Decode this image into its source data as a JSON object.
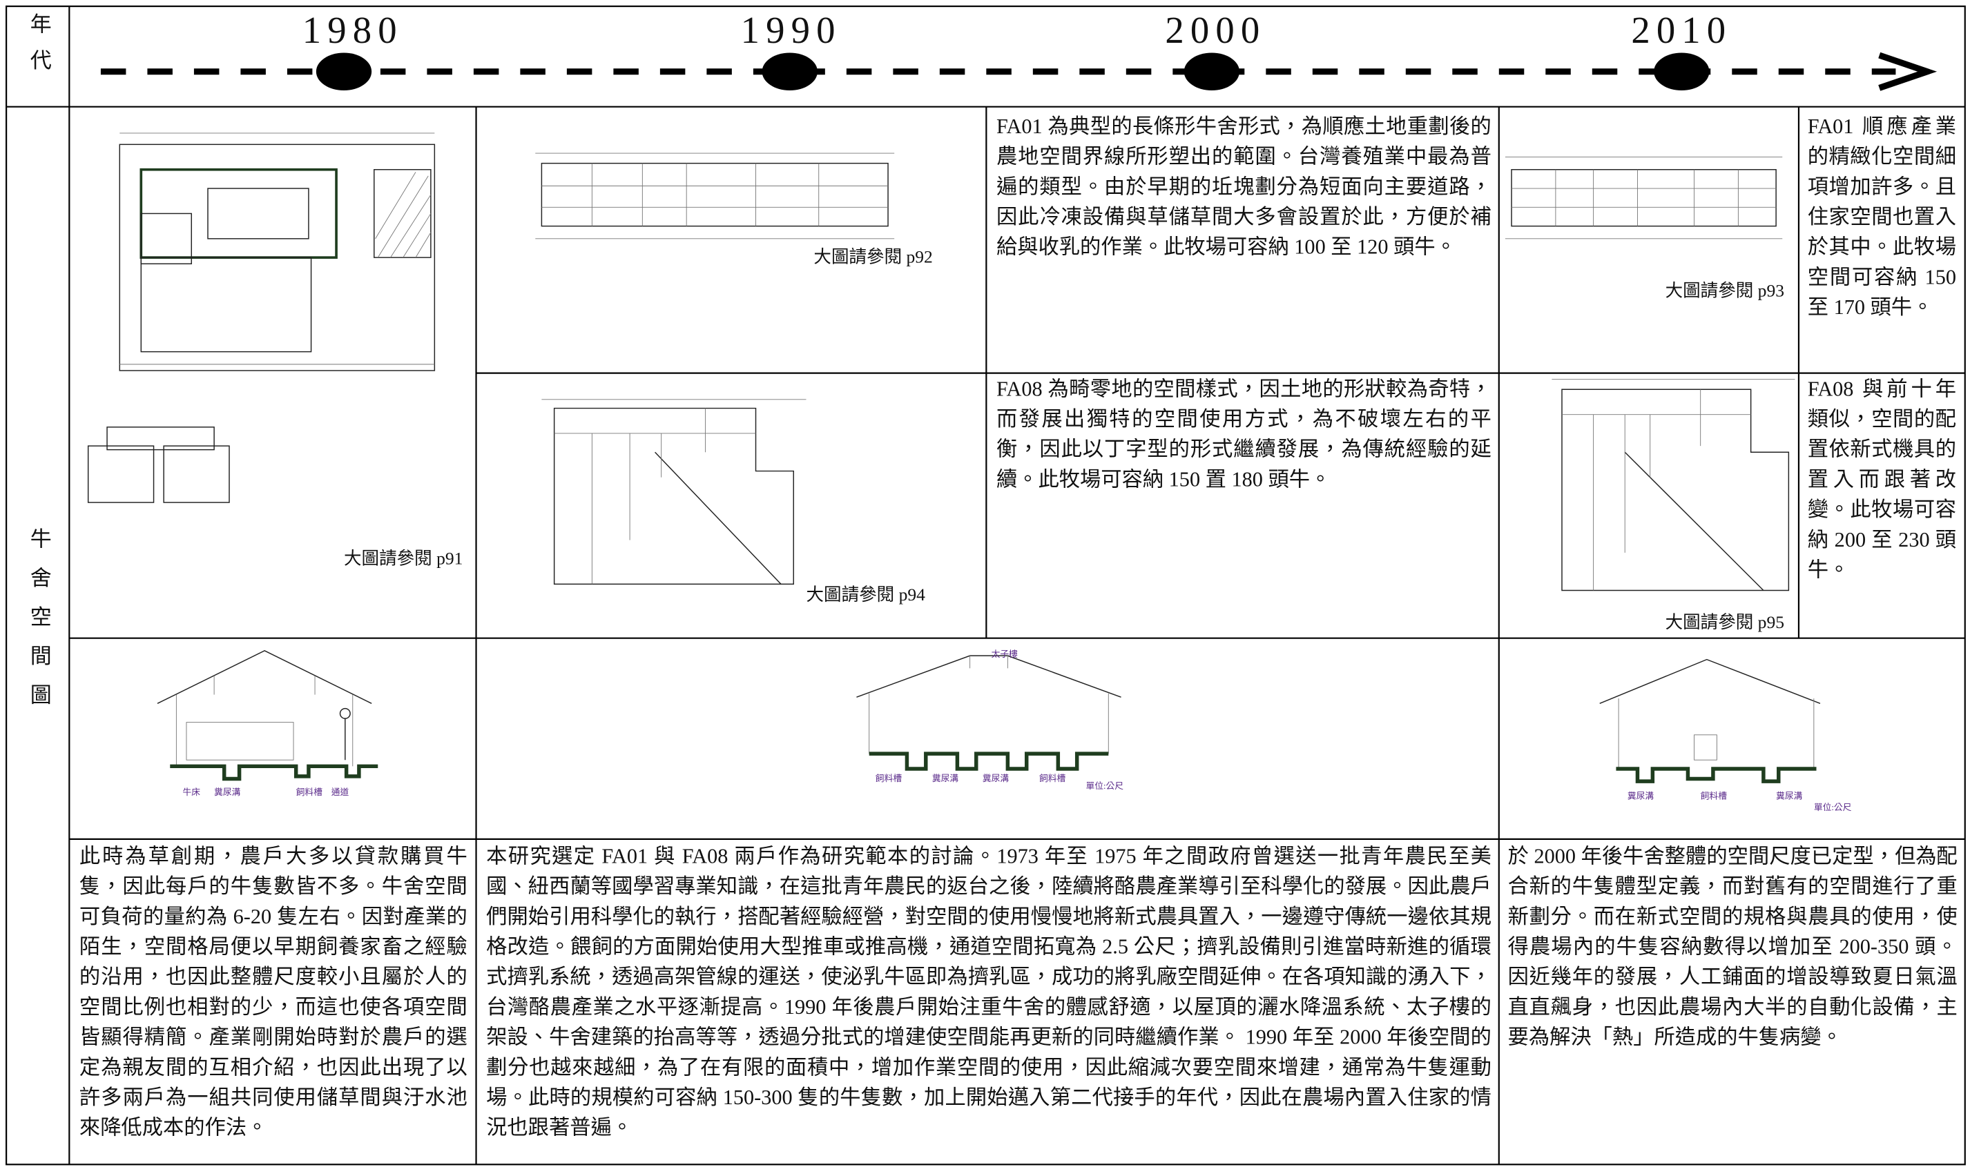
{
  "header": {
    "era_label": "年代",
    "years": [
      "1980",
      "1990",
      "2000",
      "2010"
    ]
  },
  "side_label": "牛舍空間圖",
  "plans": {
    "p91": "大圖請參閱 p91",
    "p92": "大圖請參閱 p92",
    "p93": "大圖請參閱 p93",
    "p94": "大圖請參閱 p94",
    "p95": "大圖請參閱 p95"
  },
  "descriptions": {
    "fa01_1990": "FA01 為典型的長條形牛舍形式，為順應土地重劃後的農地空間界線所形塑出的範圍。台灣養殖業中最為普遍的類型。由於早期的坵塊劃分為短面向主要道路，因此冷凍設備與草儲草間大多會設置於此，方便於補給與收乳的作業。此牧場可容納 100 至 120 頭牛。",
    "fa01_2010": "FA01 順應產業的精緻化空間細項增加許多。且住家空間也置入於其中。此牧場空間可容納 150 至 170 頭牛。",
    "fa08_1990": "FA08 為畸零地的空間樣式，因土地的形狀較為奇特，而發展出獨特的空間使用方式，為不破壞左右的平衡，因此以丁字型的形式繼續發展，為傳統經驗的延續。此牧場可容納 150 置 180 頭牛。",
    "fa08_2010": "FA08 與前十年類似，空間的配置依新式機具的置入而跟著改變。此牧場可容納 200 至 230 頭牛。"
  },
  "sections": {
    "s1980": [
      "牛床",
      "糞尿溝",
      "飼料槽",
      "通道"
    ],
    "s1990": [
      "太子樓",
      "飼料槽",
      "糞尿溝",
      "糞尿溝",
      "飼料槽",
      "單位:公尺"
    ],
    "s2010": [
      "糞尿溝",
      "飼料槽",
      "糞尿溝",
      "單位:公尺"
    ]
  },
  "periods": {
    "p1980": "此時為草創期，農戶大多以貸款購買牛隻，因此每戶的牛隻數皆不多。牛舍空間可負荷的量約為 6-20 隻左右。因對產業的陌生，空間格局便以早期飼養家畜之經驗的沿用，也因此整體尺度較小且屬於人的空間比例也相對的少，而這也使各項空間皆顯得精簡。產業剛開始時對於農戶的選定為親友間的互相介紹，也因此出現了以許多兩戶為一組共同使用儲草間與汙水池來降低成本的作法。",
    "p1990": "本研究選定 FA01 與 FA08 兩戶作為研究範本的討論。1973 年至 1975 年之間政府曾選送一批青年農民至美國、紐西蘭等國學習專業知識，在這批青年農民的返台之後，陸續將酪農產業導引至科學化的發展。因此農戶們開始引用科學化的執行，搭配著經驗經營，對空間的使用慢慢地將新式農具置入，一邊遵守傳統一邊依其規格改造。餵飼的方面開始使用大型推車或推高機，通道空間拓寬為 2.5 公尺；擠乳設備則引進當時新進的循環式擠乳系統，透過高架管線的運送，使泌乳牛區即為擠乳區，成功的將乳廠空間延伸。在各項知識的湧入下，台灣酪農產業之水平逐漸提高。1990 年後農戶開始注重牛舍的體感舒適，以屋頂的灑水降溫系統、太子樓的架設、牛舍建築的抬高等等，透過分批式的增建使空間能再更新的同時繼續作業。 1990 年至 2000 年後空間的劃分也越來越細，為了在有限的面積中，增加作業空間的使用，因此縮減次要空間來增建，通常為牛隻運動場。此時的規模約可容納 150-300 隻的牛隻數，加上開始邁入第二代接手的年代，因此在農場內置入住家的情況也跟著普遍。",
    "p2010": "於 2000 年後牛舍整體的空間尺度已定型，但為配合新的牛隻體型定義，而對舊有的空間進行了重新劃分。而在新式空間的規格與農具的使用，使得農場內的牛隻容納數得以增加至 200-350 頭。因近幾年的發展，人工鋪面的增設導致夏日氣溫直直飆身，也因此農場內大半的自動化設備，主要為解決「熱」所造成的牛隻病變。"
  }
}
